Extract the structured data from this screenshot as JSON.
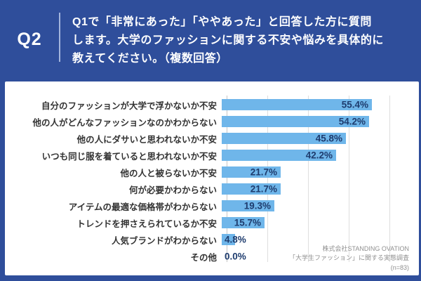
{
  "header": {
    "q_label": "Q2",
    "question_lines": [
      "Q1で「非常にあった」「ややあった」と回答した方に質問",
      "します。大学のファッションに関する不安や悩みを具体的に",
      "教えてください。（複数回答）"
    ]
  },
  "chart_data": {
    "type": "bar",
    "orientation": "horizontal",
    "title": "",
    "xlabel": "",
    "ylabel": "",
    "xlim": [
      0,
      60
    ],
    "gridline_interval": 15,
    "grid": true,
    "categories": [
      "自分のファッションが大学で浮かないか不安",
      "他の人がどんなファッションなのかわからない",
      "他の人にダサいと思われないか不安",
      "いつも同じ服を着ていると思われないか不安",
      "他の人と被らないか不安",
      "何が必要かわからない",
      "アイテムの最適な価格帯がわからない",
      "トレンドを押さえられているか不安",
      "人気ブランドがわからない",
      "その他"
    ],
    "values": [
      55.4,
      54.2,
      45.8,
      42.2,
      21.7,
      21.7,
      19.3,
      15.7,
      4.8,
      0.0
    ],
    "value_labels": [
      "55.4%",
      "54.2%",
      "45.8%",
      "42.2%",
      "21.7%",
      "21.7%",
      "19.3%",
      "15.7%",
      "4.8%",
      "0.0%"
    ],
    "bar_color": "#6fb6ea",
    "value_text_color": "#1e3c6e"
  },
  "footer": {
    "credit_lines": [
      "株式会社STANDING OVATION",
      "「大学生ファッション」に関する実態調査",
      "(n=83)"
    ]
  },
  "colors": {
    "background": "#2f4e9b",
    "panel": "#ffffff",
    "bar": "#6fb6ea",
    "value_text": "#1e3c6e",
    "category_text": "#333333",
    "question_text": "#ffffff",
    "credit_text": "#8f8f8f"
  }
}
